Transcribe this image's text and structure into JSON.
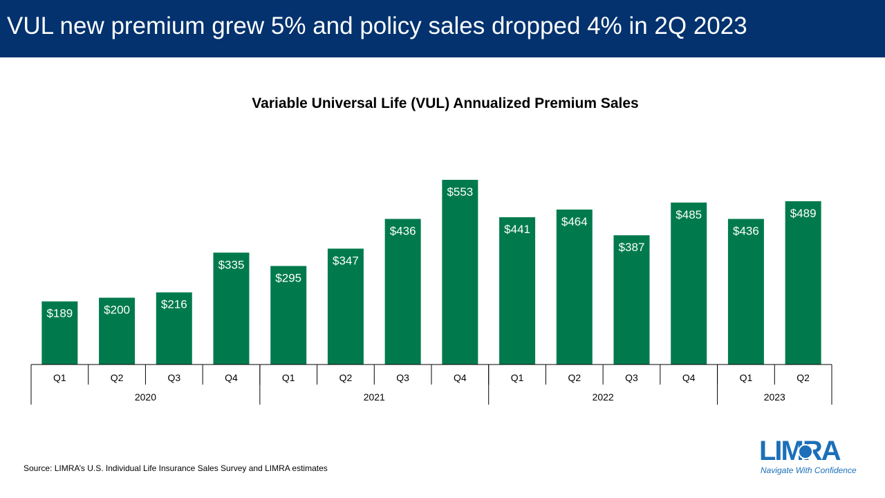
{
  "header": {
    "title": "VUL new premium grew 5% and policy sales dropped 4% in 2Q 2023"
  },
  "colors": {
    "header_bg": "#03326e",
    "bar": "#007a4d",
    "brand": "#1c6fb8"
  },
  "chart_data": {
    "type": "bar",
    "title": "Variable Universal Life (VUL) Annualized Premium Sales",
    "xlabel": "",
    "ylabel": "",
    "categories": [
      "Q1",
      "Q2",
      "Q3",
      "Q4",
      "Q1",
      "Q2",
      "Q3",
      "Q4",
      "Q1",
      "Q2",
      "Q3",
      "Q4",
      "Q1",
      "Q2"
    ],
    "groups": [
      {
        "label": "2020",
        "count": 4
      },
      {
        "label": "2021",
        "count": 4
      },
      {
        "label": "2022",
        "count": 4
      },
      {
        "label": "2023",
        "count": 2
      }
    ],
    "values": [
      189,
      200,
      216,
      335,
      295,
      347,
      436,
      553,
      441,
      464,
      387,
      485,
      436,
      489
    ],
    "data_labels": [
      "$189",
      "$200",
      "$216",
      "$335",
      "$295",
      "$347",
      "$436",
      "$553",
      "$441",
      "$464",
      "$387",
      "$485",
      "$436",
      "$489"
    ],
    "ylim": [
      0,
      553
    ],
    "grid": false,
    "legend": "none"
  },
  "footer": {
    "source": "Source: LIMRA’s U.S. Individual Life Insurance Sales Survey and LIMRA estimates"
  },
  "logo": {
    "name": "LIMRA",
    "tagline": "Navigate With Confidence"
  }
}
